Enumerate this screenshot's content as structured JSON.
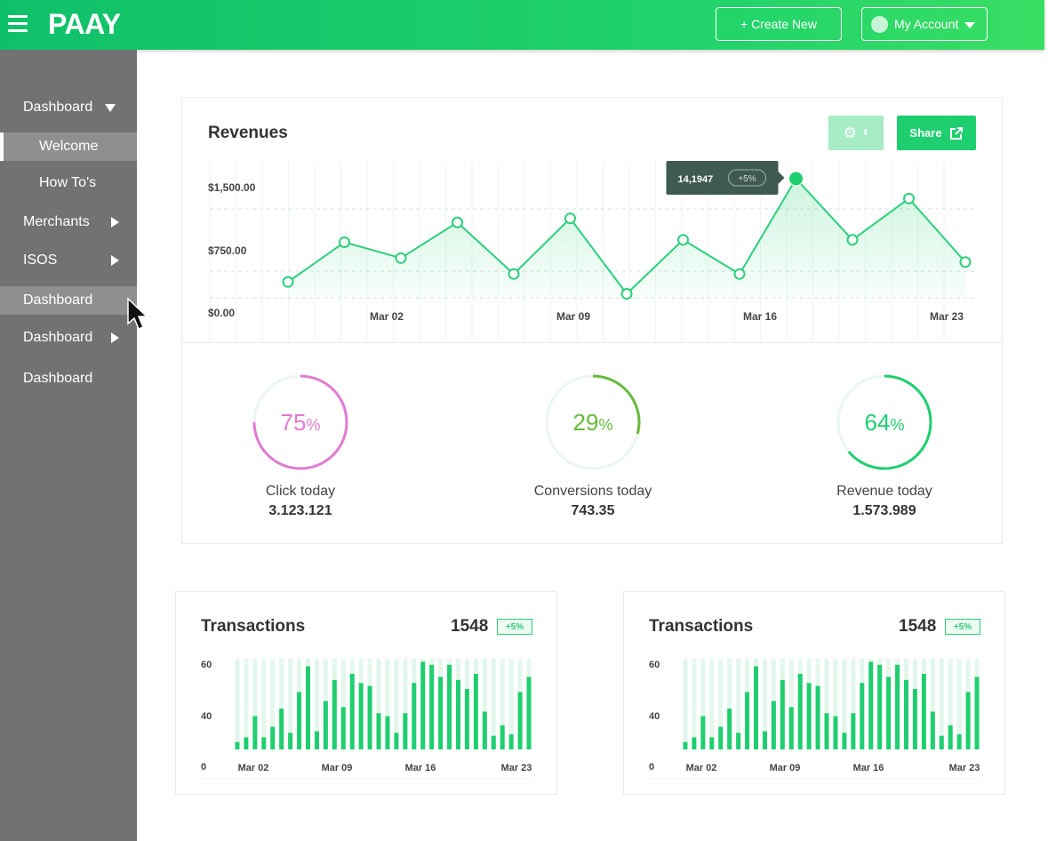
{
  "header": {
    "logo": "PAAY",
    "create_new_label": "+ Create New",
    "account_label": "My Account"
  },
  "sidebar": {
    "items": [
      {
        "label": "Dashboard",
        "arrow": "down"
      },
      {
        "label": "Welcome",
        "sub": true,
        "active": true
      },
      {
        "label": "How To's",
        "sub": true
      },
      {
        "label": "Merchants",
        "arrow": "right"
      },
      {
        "label": "ISOS",
        "arrow": "right"
      },
      {
        "label": "Dashboard",
        "hover": true
      },
      {
        "label": "Dashboard",
        "arrow": "right"
      },
      {
        "label": "Dashboard"
      }
    ]
  },
  "revenues": {
    "title": "Revenues",
    "share_label": "Share",
    "tooltip": {
      "value": "14,1947",
      "change": "+5%"
    },
    "chart_data": {
      "type": "line",
      "x_tick_labels": [
        "Mar 02",
        "Mar 09",
        "Mar 16",
        "Mar 23"
      ],
      "y_tick_labels": [
        "$1,500.00",
        "$750.00",
        "$0.00"
      ],
      "ylim": [
        0,
        1500
      ],
      "grid": true,
      "values": [
        200,
        700,
        500,
        950,
        300,
        1000,
        50,
        730,
        300,
        1500,
        730,
        1250,
        450
      ],
      "highlight_index": 9
    }
  },
  "gauges": [
    {
      "percent": 75,
      "label": "Click today",
      "value": "3.123.121",
      "color": "#e27bd2"
    },
    {
      "percent": 29,
      "label": "Conversions today",
      "value": "743.35",
      "color": "#66bb3a"
    },
    {
      "percent": 64,
      "label": "Revenue today",
      "value": "1.573.989",
      "color": "#1fcf6f"
    }
  ],
  "transactions": [
    {
      "title": "Transactions",
      "count": "1548",
      "badge": "+5%"
    },
    {
      "title": "Transactions",
      "count": "1548",
      "badge": "+5%"
    }
  ],
  "tx_chart_data": {
    "type": "bar",
    "x_tick_labels": [
      "Mar 02",
      "Mar 09",
      "Mar 16",
      "Mar 23"
    ],
    "y_tick_labels": [
      "60",
      "40",
      "0"
    ],
    "ylim": [
      0,
      60
    ],
    "values": [
      5,
      8,
      22,
      8,
      15,
      27,
      11,
      38,
      55,
      12,
      32,
      46,
      28,
      50,
      44,
      42,
      24,
      22,
      11,
      24,
      44,
      58,
      56,
      48,
      56,
      46,
      40,
      50,
      25,
      9,
      16,
      10,
      38,
      48
    ]
  },
  "colors": {
    "accent": "#1fcf6f",
    "sidebar": "#727272"
  }
}
